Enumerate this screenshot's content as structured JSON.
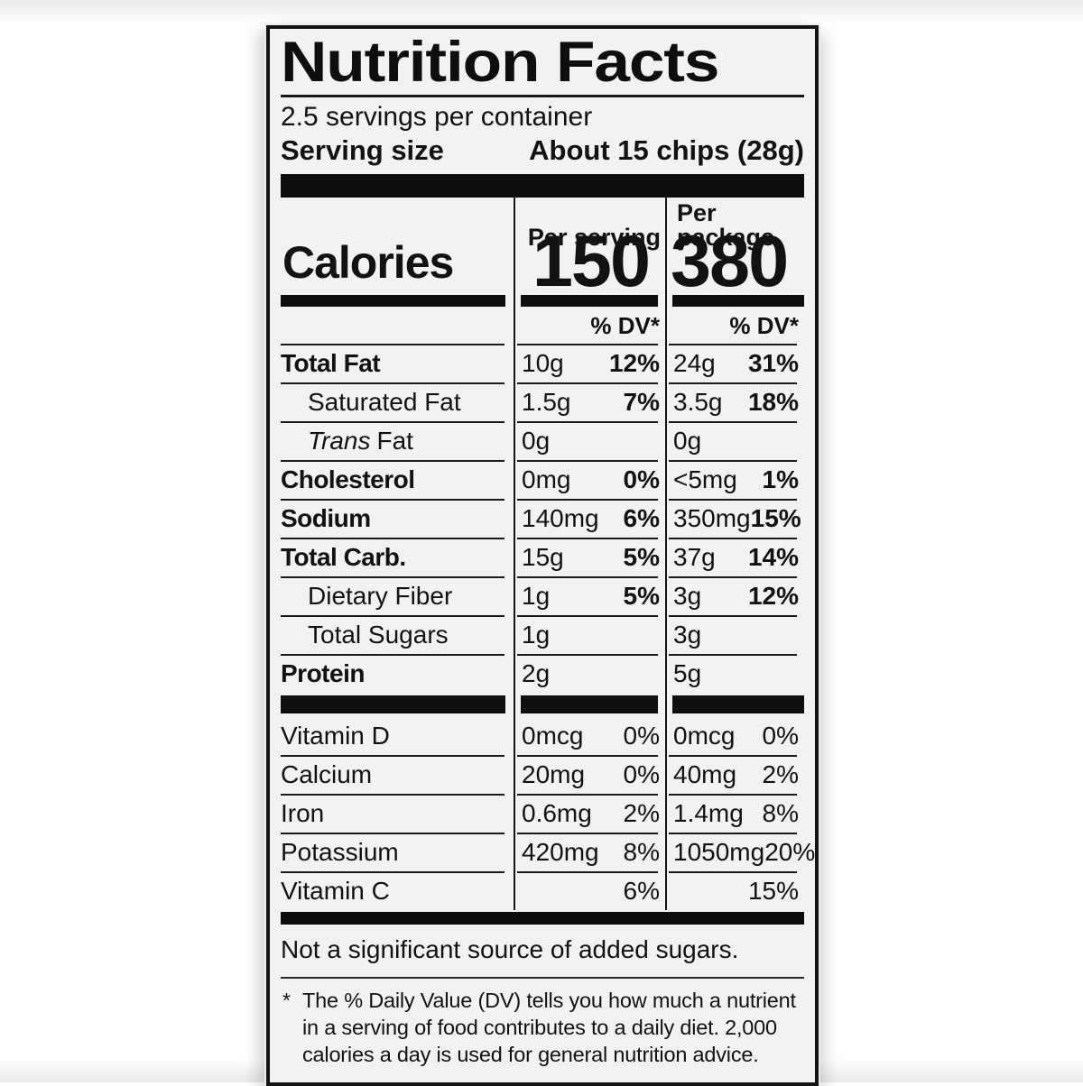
{
  "colors": {
    "label_background": "#f3f2f0",
    "ink": "#141414",
    "bar": "#0d0d0d",
    "page_background": "#ffffff"
  },
  "label": {
    "title": "Nutrition Facts",
    "servings_per_container": "2.5 servings per container",
    "serving_size_label": "Serving size",
    "serving_size_value": "About 15 chips (28g)",
    "columns": {
      "per_serving": "Per serving",
      "per_package": "Per package"
    },
    "calories": {
      "label": "Calories",
      "per_serving": "150",
      "per_package": "380"
    },
    "dv_header": {
      "per_serving": "% DV*",
      "per_package": "% DV*"
    },
    "nutrients": [
      {
        "name": "Total Fat",
        "ps_amount": "10g",
        "ps_dv": "12%",
        "pp_amount": "24g",
        "pp_dv": "31%"
      },
      {
        "name": "Saturated Fat",
        "ps_amount": "1.5g",
        "ps_dv": "7%",
        "pp_amount": "3.5g",
        "pp_dv": "18%"
      },
      {
        "name_italic": "Trans",
        "name": "Fat",
        "ps_amount": "0g",
        "ps_dv": "",
        "pp_amount": "0g",
        "pp_dv": ""
      },
      {
        "name": "Cholesterol",
        "ps_amount": "0mg",
        "ps_dv": "0%",
        "pp_amount": "<5mg",
        "pp_dv": "1%"
      },
      {
        "name": "Sodium",
        "ps_amount": "140mg",
        "ps_dv": "6%",
        "pp_amount": "350mg",
        "pp_dv": "15%"
      },
      {
        "name": "Total Carb.",
        "ps_amount": "15g",
        "ps_dv": "5%",
        "pp_amount": "37g",
        "pp_dv": "14%"
      },
      {
        "name": "Dietary Fiber",
        "ps_amount": "1g",
        "ps_dv": "5%",
        "pp_amount": "3g",
        "pp_dv": "12%"
      },
      {
        "name": "Total Sugars",
        "ps_amount": "1g",
        "ps_dv": "",
        "pp_amount": "3g",
        "pp_dv": ""
      },
      {
        "name": "Protein",
        "ps_amount": "2g",
        "ps_dv": "",
        "pp_amount": "5g",
        "pp_dv": ""
      }
    ],
    "vitamins": [
      {
        "name": "Vitamin D",
        "ps_amount": "0mcg",
        "ps_dv": "0%",
        "pp_amount": "0mcg",
        "pp_dv": "0%"
      },
      {
        "name": "Calcium",
        "ps_amount": "20mg",
        "ps_dv": "0%",
        "pp_amount": "40mg",
        "pp_dv": "2%"
      },
      {
        "name": "Iron",
        "ps_amount": "0.6mg",
        "ps_dv": "2%",
        "pp_amount": "1.4mg",
        "pp_dv": "8%"
      },
      {
        "name": "Potassium",
        "ps_amount": "420mg",
        "ps_dv": "8%",
        "pp_amount": "1050mg",
        "pp_dv": "20%"
      },
      {
        "name": "Vitamin C",
        "ps_amount": "",
        "ps_dv": "6%",
        "pp_amount": "",
        "pp_dv": "15%"
      }
    ],
    "not_significant": "Not a significant source of added sugars.",
    "footnote_marker": "*",
    "footnote": "The % Daily Value (DV) tells you how much a nutrient in a serving of food contributes to a daily diet. 2,000 calories a day is used for general nutrition advice."
  }
}
